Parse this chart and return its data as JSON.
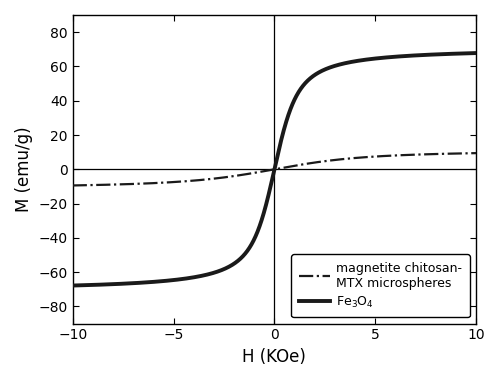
{
  "title": "",
  "xlabel": "H (KOe)",
  "ylabel": "M (emu/g)",
  "xlim": [
    -10,
    10
  ],
  "ylim": [
    -90,
    90
  ],
  "yticks": [
    -80,
    -60,
    -40,
    -20,
    0,
    20,
    40,
    60,
    80
  ],
  "xticks": [
    -10,
    -5,
    0,
    5,
    10
  ],
  "fe3o4_Ms": 71.0,
  "fe3o4_a": 0.45,
  "chitosan_Ms": 11.5,
  "chitosan_a": 1.8,
  "line_color": "#1a1a1a",
  "linewidth_solid": 2.8,
  "linewidth_dashdot": 1.6,
  "legend_chitosan": "magnetite chitosan-\nMTX microspheres",
  "legend_fe3o4": "Fe$_3$O$_4$",
  "background_color": "#ffffff",
  "figsize": [
    5.0,
    3.81
  ],
  "dpi": 100
}
